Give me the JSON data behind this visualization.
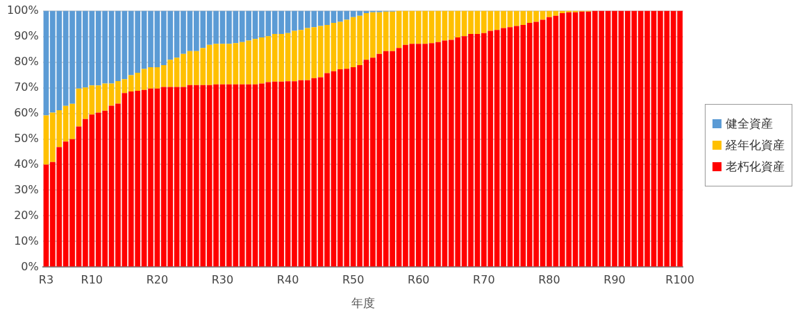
{
  "chart_data": {
    "type": "bar",
    "stacked": true,
    "xlabel": "年度",
    "categories": [
      "R3",
      null,
      null,
      null,
      null,
      null,
      null,
      "R10",
      null,
      null,
      null,
      null,
      null,
      null,
      null,
      null,
      null,
      "R20",
      null,
      null,
      null,
      null,
      null,
      null,
      null,
      null,
      null,
      "R30",
      null,
      null,
      null,
      null,
      null,
      null,
      null,
      null,
      null,
      "R40",
      null,
      null,
      null,
      null,
      null,
      null,
      null,
      null,
      null,
      "R50",
      null,
      null,
      null,
      null,
      null,
      null,
      null,
      null,
      null,
      "R60",
      null,
      null,
      null,
      null,
      null,
      null,
      null,
      null,
      null,
      "R70",
      null,
      null,
      null,
      null,
      null,
      null,
      null,
      null,
      null,
      "R80",
      null,
      null,
      null,
      null,
      null,
      null,
      null,
      null,
      null,
      "R90",
      null,
      null,
      null,
      null,
      null,
      null,
      null,
      null,
      null,
      "R100"
    ],
    "series": [
      {
        "name": "老朽化資産",
        "color": "#ff0000",
        "values": [
          40,
          41,
          46.8,
          49,
          49.9,
          54.9,
          57.8,
          59.5,
          60.3,
          61,
          63,
          63.8,
          67.9,
          68.5,
          68.8,
          69.1,
          69.7,
          69.7,
          70.3,
          70.3,
          70.3,
          70.3,
          71,
          71,
          71,
          71,
          71.3,
          71.3,
          71.3,
          71.3,
          71.3,
          71.3,
          71.3,
          71.6,
          72.2,
          72.4,
          72.4,
          72.5,
          72.5,
          72.9,
          72.9,
          73.7,
          74.1,
          75.7,
          76.4,
          77.2,
          77.4,
          78,
          78.8,
          80.9,
          81.7,
          83.2,
          84.3,
          84.3,
          85.5,
          86.7,
          87.1,
          87.1,
          87.1,
          87.4,
          87.8,
          88.4,
          88.7,
          89.6,
          90.1,
          91,
          91,
          91.3,
          92.2,
          92.5,
          93.3,
          93.6,
          94.1,
          94.5,
          95.3,
          95.7,
          96.5,
          97.5,
          98.1,
          99.1,
          99.4,
          99.4,
          99.7,
          99.7,
          100,
          100,
          100,
          100,
          100,
          100,
          100,
          100,
          100,
          100,
          100,
          100,
          100,
          100
        ]
      },
      {
        "name": "経年化資産",
        "color": "#ffc000",
        "values": [
          19.2,
          19.3,
          14.4,
          13.9,
          13.8,
          14.8,
          12.3,
          11.4,
          10.6,
          10.6,
          8.6,
          8.8,
          5.4,
          6.4,
          7,
          8.2,
          8.3,
          8.3,
          8.5,
          10.6,
          11.4,
          12.9,
          13.3,
          13.3,
          14.5,
          15.7,
          15.8,
          15.8,
          15.8,
          16.1,
          16.5,
          17.1,
          17.7,
          18,
          17.9,
          18.6,
          18.6,
          18.8,
          19.7,
          19.6,
          20.4,
          19.9,
          20,
          18.8,
          18.9,
          18.5,
          19.1,
          19.5,
          19.3,
          18.2,
          17.7,
          16.2,
          15.4,
          15.4,
          14.5,
          13.3,
          12.9,
          12.9,
          12.9,
          12.6,
          12.2,
          11.6,
          11.3,
          10.4,
          9.9,
          9,
          9,
          8.7,
          7.8,
          7.5,
          6.7,
          6.4,
          5.9,
          5.5,
          4.7,
          4.3,
          3.5,
          2.5,
          1.9,
          0.9,
          0.6,
          0.6,
          0.3,
          0.3,
          0,
          0,
          0,
          0,
          0,
          0,
          0,
          0,
          0,
          0,
          0,
          0,
          0,
          0
        ]
      },
      {
        "name": "健全資産",
        "color": "#5b9bd5",
        "values": [
          40.8,
          39.7,
          38.8,
          37.1,
          36.3,
          30.3,
          29.9,
          29.1,
          29.1,
          28.4,
          28.4,
          27.4,
          26.7,
          25.1,
          24.2,
          22.7,
          22,
          22,
          21.2,
          19.1,
          18.3,
          16.8,
          15.7,
          15.7,
          14.5,
          13.3,
          12.9,
          12.9,
          12.9,
          12.6,
          12.2,
          11.6,
          11,
          10.4,
          9.9,
          9,
          9,
          8.7,
          7.8,
          7.5,
          6.7,
          6.4,
          5.9,
          5.5,
          4.7,
          4.3,
          3.5,
          2.5,
          1.9,
          0.9,
          0.6,
          0.6,
          0.3,
          0.3,
          0,
          0,
          0,
          0,
          0,
          0,
          0,
          0,
          0,
          0,
          0,
          0,
          0,
          0,
          0,
          0,
          0,
          0,
          0,
          0,
          0,
          0,
          0,
          0,
          0,
          0,
          0,
          0,
          0,
          0,
          0,
          0,
          0,
          0,
          0,
          0,
          0,
          0,
          0,
          0,
          0,
          0,
          0,
          0
        ]
      }
    ],
    "ylim": [
      0,
      100
    ],
    "yticks": [
      {
        "value": 0,
        "label": "0%"
      },
      {
        "value": 10,
        "label": "10%"
      },
      {
        "value": 20,
        "label": "20%"
      },
      {
        "value": 30,
        "label": "30%"
      },
      {
        "value": 40,
        "label": "40%"
      },
      {
        "value": 50,
        "label": "50%"
      },
      {
        "value": 60,
        "label": "60%"
      },
      {
        "value": 70,
        "label": "70%"
      },
      {
        "value": 80,
        "label": "80%"
      },
      {
        "value": 90,
        "label": "90%"
      },
      {
        "value": 100,
        "label": "100%"
      }
    ],
    "grid": "y",
    "legend": "right"
  }
}
